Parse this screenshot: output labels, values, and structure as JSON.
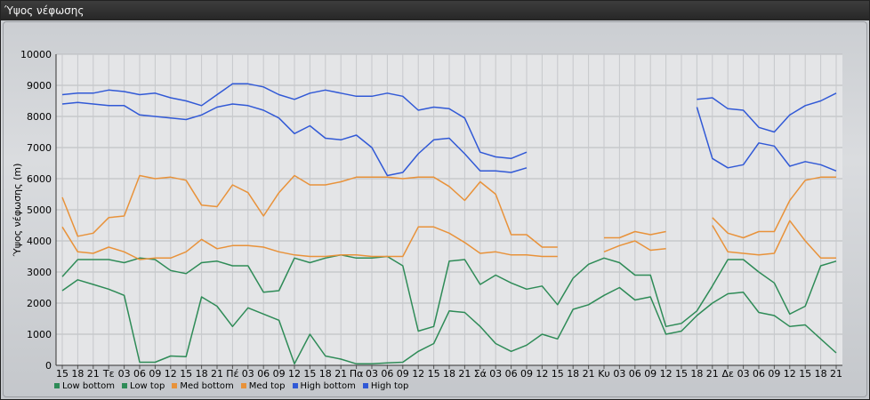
{
  "window": {
    "title": "Ύψος νέφωσης"
  },
  "chart_data": {
    "type": "line",
    "title": "",
    "ylabel": "Ύψος νέφωσης (m)",
    "ylim": [
      0,
      10000
    ],
    "yticks": [
      0,
      1000,
      2000,
      3000,
      4000,
      5000,
      6000,
      7000,
      8000,
      9000,
      10000
    ],
    "grid": true,
    "legend_placement": "bottom-left",
    "x": [
      "15",
      "18",
      "21",
      "Τε",
      "03",
      "06",
      "09",
      "12",
      "15",
      "18",
      "21",
      "Πέ",
      "03",
      "06",
      "09",
      "12",
      "15",
      "18",
      "21",
      "Πα",
      "03",
      "06",
      "09",
      "12",
      "15",
      "18",
      "21",
      "Σά",
      "03",
      "06",
      "09",
      "12",
      "15",
      "18",
      "21",
      "Κυ",
      "03",
      "06",
      "09",
      "12",
      "15",
      "18",
      "21",
      "Δε",
      "03",
      "06",
      "09",
      "12",
      "15",
      "18",
      "21"
    ],
    "series": [
      {
        "name": "Low bottom",
        "color": "#2e8b57",
        "values": [
          2400,
          2750,
          2600,
          2450,
          2250,
          100,
          100,
          300,
          280,
          2200,
          1900,
          1250,
          1850,
          1650,
          1450,
          50,
          1000,
          300,
          200,
          50,
          50,
          80,
          100,
          450,
          700,
          1750,
          1700,
          1250,
          700,
          450,
          650,
          1000,
          850,
          1800,
          1950,
          2250,
          2500,
          2100,
          2200,
          1000,
          1100,
          1600,
          2000,
          2300,
          2350,
          1700,
          1600,
          1250,
          1300,
          850,
          400
        ]
      },
      {
        "name": "Low top",
        "color": "#2e8b57",
        "values": [
          2850,
          3400,
          3400,
          3400,
          3300,
          3450,
          3400,
          3050,
          2950,
          3300,
          3350,
          3200,
          3200,
          2350,
          2400,
          3450,
          3300,
          3450,
          3550,
          3450,
          3450,
          3500,
          3200,
          1100,
          1250,
          3350,
          3400,
          2600,
          2900,
          2650,
          2450,
          2550,
          1950,
          2800,
          3250,
          3450,
          3300,
          2900,
          2900,
          1250,
          1350,
          1750,
          2550,
          3400,
          3400,
          3000,
          2650,
          1650,
          1900,
          3200,
          3350
        ]
      },
      {
        "name": "Med bottom",
        "color": "#e8923a",
        "values": [
          4450,
          3650,
          3600,
          3800,
          3650,
          3400,
          3450,
          3450,
          3650,
          4050,
          3750,
          3850,
          3850,
          3800,
          3650,
          3550,
          3500,
          3500,
          3550,
          3550,
          3500,
          3500,
          3500,
          4450,
          4450,
          4250,
          3950,
          3600,
          3650,
          3550,
          3550,
          3500,
          3500,
          null,
          null,
          3650,
          3850,
          4000,
          3700,
          3750,
          null,
          null,
          4500,
          3650,
          3600,
          3550,
          3600,
          4650,
          4000,
          3450,
          3450
        ]
      },
      {
        "name": "Med top",
        "color": "#e8923a",
        "values": [
          5400,
          4150,
          4250,
          4750,
          4800,
          6100,
          6000,
          6050,
          5950,
          5150,
          5100,
          5800,
          5550,
          4800,
          5550,
          6100,
          5800,
          5800,
          5900,
          6050,
          6050,
          6050,
          6000,
          6050,
          6050,
          5750,
          5300,
          5900,
          5500,
          4200,
          4200,
          3800,
          3800,
          null,
          null,
          4100,
          4100,
          4300,
          4200,
          4300,
          null,
          null,
          4750,
          4250,
          4100,
          4300,
          4300,
          5300,
          5950,
          6050,
          6050
        ]
      },
      {
        "name": "High bottom",
        "color": "#3159d6",
        "values": [
          8400,
          8450,
          8400,
          8350,
          8350,
          8050,
          8000,
          7950,
          7900,
          8050,
          8300,
          8400,
          8350,
          8200,
          7950,
          7450,
          7700,
          7300,
          7250,
          7400,
          7000,
          6100,
          6200,
          6800,
          7250,
          7300,
          6800,
          6250,
          6250,
          6200,
          6350,
          null,
          null,
          null,
          null,
          null,
          null,
          null,
          null,
          null,
          null,
          8300,
          6650,
          6350,
          6450,
          7150,
          7050,
          6400,
          6550,
          6450,
          6250
        ]
      },
      {
        "name": "High top",
        "color": "#3159d6",
        "values": [
          8700,
          8750,
          8750,
          8850,
          8800,
          8700,
          8750,
          8600,
          8500,
          8350,
          8700,
          9050,
          9050,
          8950,
          8700,
          8550,
          8750,
          8850,
          8750,
          8650,
          8650,
          8750,
          8650,
          8200,
          8300,
          8250,
          7950,
          6850,
          6700,
          6650,
          6850,
          null,
          null,
          null,
          null,
          null,
          null,
          null,
          null,
          null,
          null,
          8550,
          8600,
          8250,
          8200,
          7650,
          7500,
          8050,
          8350,
          8500,
          8750
        ]
      }
    ]
  }
}
